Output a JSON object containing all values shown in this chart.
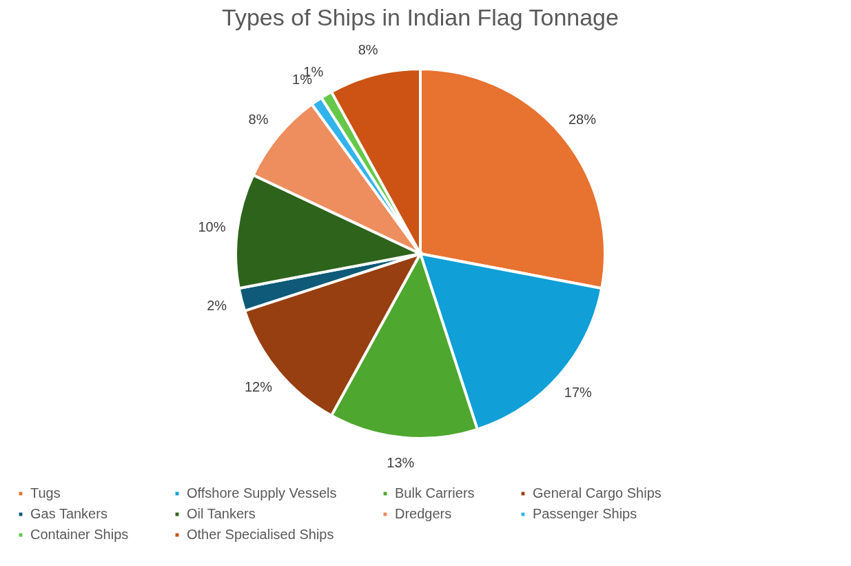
{
  "chart_data": {
    "type": "pie",
    "title": "Types of Ships in Indian Flag Tonnage",
    "categories": [
      "Tugs",
      "Offshore Supply Vessels",
      "Bulk Carriers",
      "General Cargo Ships",
      "Gas Tankers",
      "Oil Tankers",
      "Dredgers",
      "Passenger Ships",
      "Container Ships",
      "Other Specialised Ships"
    ],
    "values": [
      28,
      17,
      13,
      12,
      2,
      10,
      8,
      1,
      1,
      8
    ],
    "value_labels": [
      "28%",
      "17%",
      "13%",
      "12%",
      "2%",
      "10%",
      "8%",
      "1%",
      "1%",
      "8%"
    ],
    "colors": [
      "#e8722f",
      "#109fd6",
      "#4ea72e",
      "#973f10",
      "#0e5a78",
      "#2e631c",
      "#ee8d5d",
      "#33b3eb",
      "#65c84a",
      "#cc5314"
    ],
    "legend": "bottom"
  }
}
